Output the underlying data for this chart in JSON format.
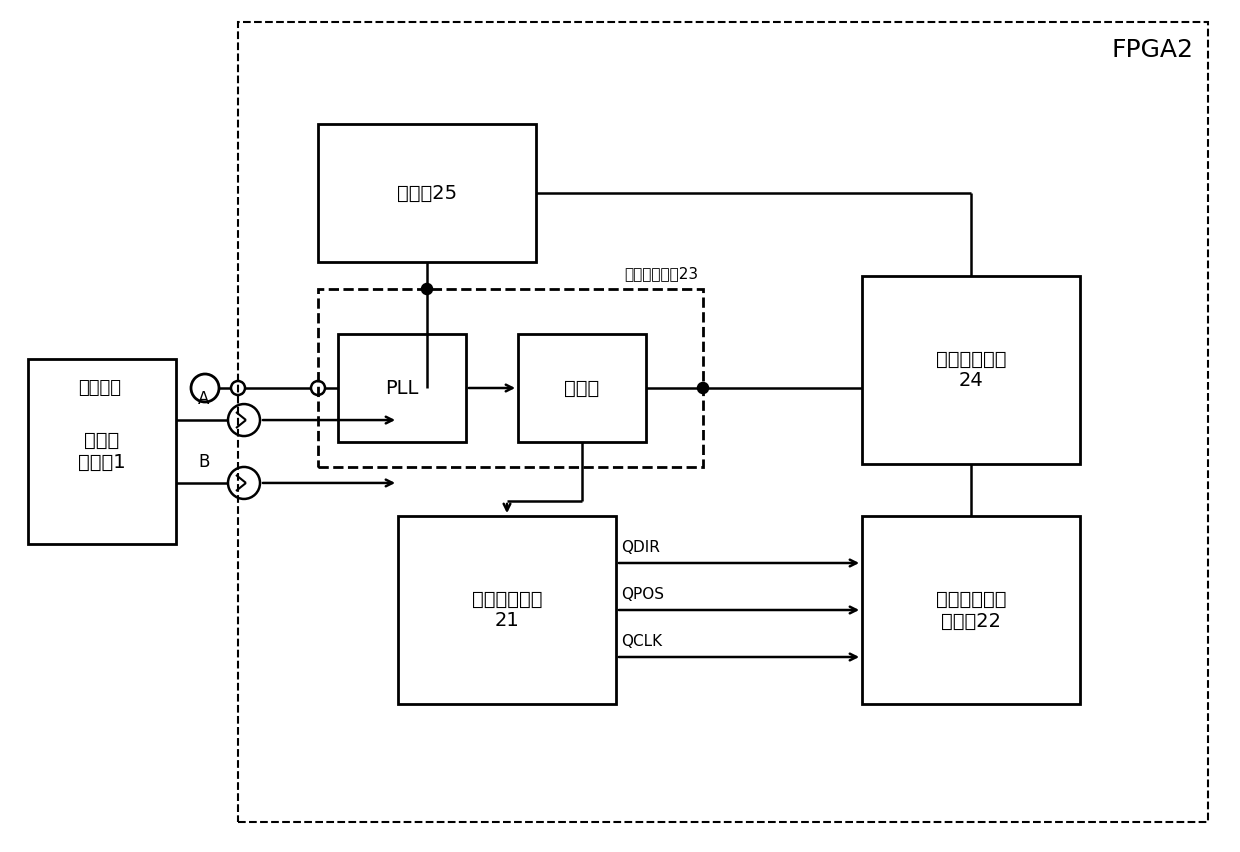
{
  "background_color": "#ffffff",
  "fpga_label": "FPGA2",
  "enc_label": "增量式\n编码器1",
  "timer_label": "定时器25",
  "pll_label": "PLL",
  "div_label": "分频器",
  "clkmod_label": "时钟分频模块23",
  "speed_label": "速度计算模块\n24",
  "pos_label": "位置计数模块\n21",
  "cap_label": "捕捉定时器控\n制模块22",
  "ext_clk_label": "外部时钟",
  "A_label": "A",
  "B_label": "B",
  "QDIR_label": "QDIR",
  "QPOS_label": "QPOS",
  "QCLK_label": "QCLK"
}
